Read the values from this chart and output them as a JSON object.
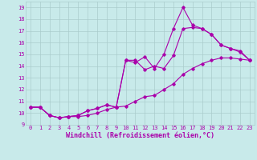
{
  "title": "",
  "xlabel": "Windchill (Refroidissement éolien,°C)",
  "ylabel": "",
  "bg_color": "#c8eaea",
  "line_color": "#aa00aa",
  "grid_color": "#aacccc",
  "xlim": [
    -0.5,
    23.5
  ],
  "ylim": [
    9,
    19.5
  ],
  "yticks": [
    9,
    10,
    11,
    12,
    13,
    14,
    15,
    16,
    17,
    18,
    19
  ],
  "xticks": [
    0,
    1,
    2,
    3,
    4,
    5,
    6,
    7,
    8,
    9,
    10,
    11,
    12,
    13,
    14,
    15,
    16,
    17,
    18,
    19,
    20,
    21,
    22,
    23
  ],
  "line1_x": [
    0,
    1,
    2,
    3,
    4,
    5,
    6,
    7,
    8,
    9,
    10,
    11,
    12,
    13,
    14,
    15,
    16,
    17,
    18,
    19,
    20,
    21,
    22,
    23
  ],
  "line1_y": [
    10.5,
    10.5,
    9.8,
    9.6,
    9.7,
    9.7,
    9.8,
    10.0,
    10.3,
    10.5,
    10.6,
    11.0,
    11.4,
    11.5,
    12.0,
    12.5,
    13.3,
    13.8,
    14.2,
    14.5,
    14.7,
    14.7,
    14.6,
    14.5
  ],
  "line2_x": [
    0,
    1,
    2,
    3,
    4,
    5,
    6,
    7,
    8,
    9,
    10,
    11,
    12,
    13,
    14,
    15,
    16,
    17,
    18,
    19,
    20,
    21,
    22,
    23
  ],
  "line2_y": [
    10.5,
    10.5,
    9.8,
    9.6,
    9.7,
    9.8,
    10.2,
    10.4,
    10.7,
    10.5,
    14.5,
    14.5,
    13.7,
    14.0,
    13.8,
    14.9,
    17.2,
    17.3,
    17.2,
    16.7,
    15.8,
    15.5,
    15.3,
    14.5
  ],
  "line3_x": [
    0,
    1,
    2,
    3,
    4,
    5,
    6,
    7,
    8,
    9,
    10,
    11,
    12,
    13,
    14,
    15,
    16,
    17,
    18,
    19,
    20,
    21,
    22,
    23
  ],
  "line3_y": [
    10.5,
    10.5,
    9.8,
    9.6,
    9.7,
    9.8,
    10.2,
    10.4,
    10.7,
    10.5,
    14.5,
    14.3,
    14.8,
    13.8,
    15.0,
    17.2,
    19.0,
    17.5,
    17.2,
    16.7,
    15.8,
    15.5,
    15.2,
    14.5
  ],
  "marker": "D",
  "markersize": 1.8,
  "linewidth": 0.8,
  "tick_fontsize": 5.0,
  "xlabel_fontsize": 6.0
}
